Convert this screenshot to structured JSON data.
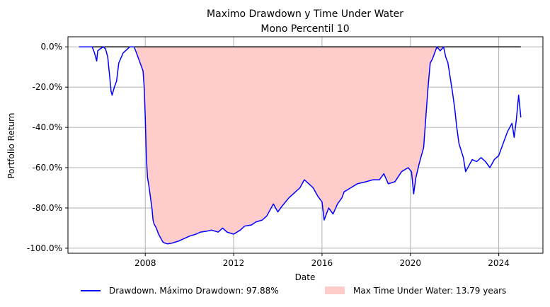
{
  "chart_data": {
    "type": "line",
    "title": "Maximo Drawdown y Time Under Water",
    "subtitle": "Mono Percentil 10",
    "xlabel": "Date",
    "ylabel": "Portfolio Return",
    "xlim": [
      2004.5,
      2026.0
    ],
    "ylim": [
      -102.5,
      5.0
    ],
    "x_ticks": [
      2008,
      2012,
      2016,
      2020,
      2024
    ],
    "x_tick_labels": [
      "2008",
      "2012",
      "2016",
      "2020",
      "2024"
    ],
    "y_ticks": [
      0,
      -20,
      -40,
      -60,
      -80,
      -100
    ],
    "y_tick_labels": [
      "0.0%",
      "-20.0%",
      "-40.0%",
      "-60.0%",
      "-80.0%",
      "-100.0%"
    ],
    "grid": true,
    "legend_position": "below",
    "series": [
      {
        "name": "Drawdown. Máximo Drawdown: 97.88%",
        "color": "#0000ff",
        "x": [
          2005.0,
          2005.4,
          2005.6,
          2005.7,
          2005.8,
          2005.85,
          2005.95,
          2006.1,
          2006.2,
          2006.3,
          2006.4,
          2006.45,
          2006.5,
          2006.6,
          2006.7,
          2006.8,
          2007.0,
          2007.3,
          2007.5,
          2007.7,
          2007.8,
          2007.9,
          2007.95,
          2008.0,
          2008.05,
          2008.1,
          2008.15,
          2008.2,
          2008.3,
          2008.35,
          2008.4,
          2008.5,
          2008.6,
          2008.7,
          2008.8,
          2008.9,
          2009.0,
          2009.2,
          2009.5,
          2009.8,
          2010.0,
          2010.3,
          2010.5,
          2010.8,
          2011.0,
          2011.3,
          2011.5,
          2011.7,
          2012.0,
          2012.3,
          2012.5,
          2012.8,
          2013.0,
          2013.3,
          2013.5,
          2013.8,
          2014.0,
          2014.2,
          2014.5,
          2014.8,
          2015.0,
          2015.2,
          2015.4,
          2015.6,
          2015.8,
          2016.0,
          2016.1,
          2016.3,
          2016.5,
          2016.7,
          2016.9,
          2017.0,
          2017.3,
          2017.6,
          2018.0,
          2018.3,
          2018.6,
          2018.8,
          2019.0,
          2019.3,
          2019.6,
          2019.9,
          2020.05,
          2020.15,
          2020.25,
          2020.4,
          2020.6,
          2020.8,
          2020.9,
          2021.0,
          2021.2,
          2021.35,
          2021.5,
          2021.6,
          2021.7,
          2021.8,
          2021.9,
          2022.0,
          2022.1,
          2022.2,
          2022.4,
          2022.5,
          2022.7,
          2022.8,
          2023.0,
          2023.2,
          2023.4,
          2023.6,
          2023.8,
          2024.0,
          2024.2,
          2024.4,
          2024.6,
          2024.7,
          2024.8,
          2024.9,
          2025.0
        ],
        "y": [
          0,
          0,
          0,
          -3,
          -7,
          -2,
          -1,
          0,
          -1,
          -5,
          -16,
          -22,
          -24,
          -20,
          -17,
          -8,
          -3,
          0,
          0,
          -6,
          -9,
          -12,
          -20,
          -35,
          -55,
          -65,
          -68,
          -72,
          -80,
          -86,
          -88,
          -90,
          -93,
          -95,
          -97,
          -97.5,
          -97.88,
          -97.5,
          -96.5,
          -95,
          -94,
          -93,
          -92,
          -91.5,
          -91,
          -92,
          -90,
          -92,
          -93,
          -91,
          -89,
          -88.5,
          -87,
          -86,
          -84,
          -78,
          -82,
          -79,
          -75,
          -72,
          -70,
          -66,
          -68,
          -70,
          -74,
          -77,
          -86,
          -80,
          -83,
          -78,
          -75,
          -72,
          -70,
          -68,
          -67,
          -66,
          -66,
          -63,
          -68,
          -67,
          -62,
          -60,
          -62,
          -73,
          -65,
          -58,
          -50,
          -20,
          -8,
          -6,
          0,
          -2,
          0,
          -5,
          -8,
          -15,
          -22,
          -30,
          -40,
          -48,
          -55,
          -62,
          -58,
          -56,
          -57,
          -55,
          -57,
          -60,
          -56,
          -54,
          -48,
          -42,
          -38,
          -45,
          -36,
          -24,
          -35
        ],
        "mark_names": [
          "2005.0",
          "2005.4",
          "2005.6",
          "2005.7",
          "2005.8",
          "2005.85",
          "2005.95",
          "2006.1",
          "2006.2",
          "2006.3",
          "2006.4",
          "2006.45",
          "2006.5",
          "2006.6",
          "2006.7",
          "2006.8",
          "2007.0",
          "2007.3",
          "2007.5",
          "2007.7",
          "2007.8",
          "2007.9",
          "2007.95",
          "2008.0",
          "2008.05",
          "2008.1",
          "2008.15",
          "2008.2",
          "2008.3",
          "2008.35",
          "2008.4",
          "2008.5",
          "2008.6",
          "2008.7",
          "2008.8",
          "2008.9",
          "2009.0",
          "2009.2",
          "2009.5",
          "2009.8",
          "2010.0",
          "2010.3",
          "2010.5",
          "2010.8",
          "2011.0",
          "2011.3",
          "2011.5",
          "2011.7",
          "2012.0",
          "2012.3",
          "2012.5",
          "2012.8",
          "2013.0",
          "2013.3",
          "2013.5",
          "2013.8",
          "2014.0",
          "2014.2",
          "2014.5",
          "2014.8",
          "2015.0",
          "2015.2",
          "2015.4",
          "2015.6",
          "2015.8",
          "2016.0",
          "2016.1",
          "2016.3",
          "2016.5",
          "2016.7",
          "2016.9",
          "2017.0",
          "2017.3",
          "2017.6",
          "2018.0",
          "2018.3",
          "2018.6",
          "2018.8",
          "2019.0",
          "2019.3",
          "2019.6",
          "2019.9",
          "2020.05",
          "2020.15",
          "2020.25",
          "2020.4",
          "2020.6",
          "2020.8",
          "2020.9",
          "2021.0",
          "2021.2",
          "2021.35",
          "2021.5",
          "2021.6",
          "2021.7",
          "2021.8",
          "2021.9",
          "2022.0",
          "2022.1",
          "2022.2",
          "2022.4",
          "2022.5",
          "2022.7",
          "2022.8",
          "2023.0",
          "2023.2",
          "2023.4",
          "2023.6",
          "2023.8",
          "2024.0",
          "2024.2",
          "2024.4",
          "2024.6",
          "2024.7",
          "2024.8",
          "2024.9",
          "2025.0"
        ]
      }
    ],
    "baseline": {
      "y": 0,
      "color": "#000000",
      "x_range": [
        2005.0,
        2025.0
      ]
    },
    "shaded_region": {
      "name": "Max Time Under Water: 13.79 years",
      "color": "#ffcccc",
      "x_range": [
        2007.6,
        2021.4
      ]
    }
  }
}
